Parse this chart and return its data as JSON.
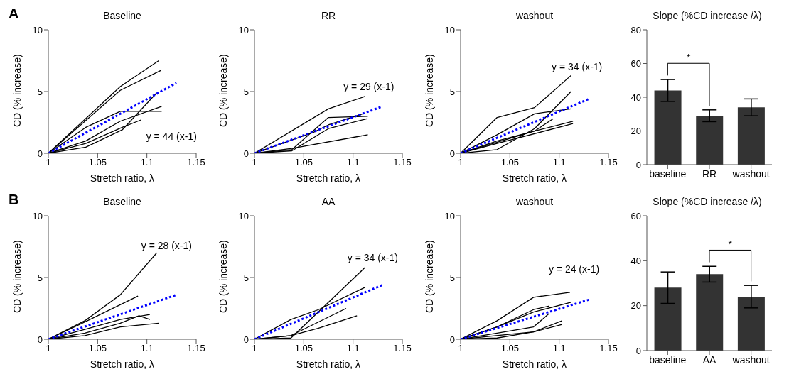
{
  "chart_data": [
    {
      "type": "line",
      "title": "Baseline",
      "xlabel": "Stretch ratio, λ",
      "ylabel": "CD (% increase)",
      "xlim": [
        1,
        1.15
      ],
      "xticks": [
        1,
        1.05,
        1.1,
        1.15
      ],
      "ylim": [
        0,
        10
      ],
      "yticks": [
        0,
        5,
        10
      ],
      "annotations": [
        "A",
        "y = 44 (x-1)"
      ],
      "series": [
        {
          "color": "#000000",
          "x": [
            1,
            1.073,
            1.112
          ],
          "values": [
            0,
            5.4,
            7.5
          ]
        },
        {
          "color": "#000000",
          "x": [
            1,
            1.073,
            1.114
          ],
          "values": [
            0,
            5.1,
            6.7
          ]
        },
        {
          "color": "#000000",
          "x": [
            1,
            1.038,
            1.073,
            1.115
          ],
          "values": [
            0,
            2.1,
            3.4,
            3.4
          ]
        },
        {
          "color": "#000000",
          "x": [
            1,
            1.038,
            1.075,
            1.11
          ],
          "values": [
            0,
            0.5,
            1.9,
            4.9
          ]
        },
        {
          "color": "#000000",
          "x": [
            1,
            1.038,
            1.073,
            1.115
          ],
          "values": [
            0,
            1,
            2.6,
            3.8
          ]
        },
        {
          "color": "#000000",
          "x": [
            1,
            1.038,
            1.075,
            1.094
          ],
          "values": [
            0,
            0.8,
            2.1,
            2.7
          ]
        },
        {
          "color": "#0000ff",
          "line_style": "dotted",
          "x": [
            1,
            1.13
          ],
          "values": [
            0,
            5.7
          ]
        }
      ]
    },
    {
      "type": "line",
      "title": "RR",
      "xlabel": "Stretch ratio, λ",
      "ylabel": "CD (% increase)",
      "xlim": [
        1,
        1.15
      ],
      "xticks": [
        1,
        1.05,
        1.1,
        1.15
      ],
      "ylim": [
        0,
        10
      ],
      "yticks": [
        0,
        5,
        10
      ],
      "annotations": [
        "y = 29 (x-1)"
      ],
      "series": [
        {
          "color": "#000000",
          "x": [
            1,
            1.075,
            1.112
          ],
          "values": [
            0,
            3.6,
            4.6
          ]
        },
        {
          "color": "#000000",
          "x": [
            1,
            1.038,
            1.075,
            1.115
          ],
          "values": [
            0,
            0.3,
            2.9,
            3
          ]
        },
        {
          "color": "#000000",
          "x": [
            1,
            1.038,
            1.075,
            1.114
          ],
          "values": [
            0,
            0.2,
            2,
            2.8
          ]
        },
        {
          "color": "#000000",
          "x": [
            1,
            1.038,
            1.115
          ],
          "values": [
            0,
            0.4,
            1.5
          ]
        },
        {
          "color": "#000000",
          "x": [
            1,
            1.06,
            1.075,
            1.11
          ],
          "values": [
            0,
            1.7,
            2.3,
            3.2
          ]
        },
        {
          "color": "#0000ff",
          "line_style": "dotted",
          "x": [
            1,
            1.13
          ],
          "values": [
            0,
            3.8
          ]
        }
      ]
    },
    {
      "type": "line",
      "title": "washout",
      "xlabel": "Stretch ratio, λ",
      "ylabel": "CD (% increase)",
      "xlim": [
        1,
        1.15
      ],
      "xticks": [
        1,
        1.05,
        1.1,
        1.15
      ],
      "ylim": [
        0,
        10
      ],
      "yticks": [
        0,
        5,
        10
      ],
      "annotations": [
        "y = 34 (x-1)"
      ],
      "series": [
        {
          "color": "#000000",
          "x": [
            1,
            1.037,
            1.075,
            1.112
          ],
          "values": [
            0,
            2.9,
            3.7,
            6.3
          ]
        },
        {
          "color": "#000000",
          "x": [
            1,
            1.037,
            1.075,
            1.112
          ],
          "values": [
            0,
            1.5,
            3.2,
            3.6
          ]
        },
        {
          "color": "#000000",
          "x": [
            1,
            1.037,
            1.075,
            1.112
          ],
          "values": [
            0,
            0.3,
            2,
            5
          ]
        },
        {
          "color": "#000000",
          "x": [
            1,
            1.037,
            1.075,
            1.094
          ],
          "values": [
            0,
            1,
            1.8,
            2.8
          ]
        },
        {
          "color": "#000000",
          "x": [
            1,
            1.075,
            1.114
          ],
          "values": [
            0,
            1.8,
            2.6
          ]
        },
        {
          "color": "#000000",
          "x": [
            1,
            1.037,
            1.114
          ],
          "values": [
            0,
            0.8,
            2.4
          ]
        },
        {
          "color": "#0000ff",
          "line_style": "dotted",
          "x": [
            1,
            1.13
          ],
          "values": [
            0,
            4.4
          ]
        }
      ]
    },
    {
      "type": "bar",
      "title": "Slope (%CD increase /λ)",
      "categories": [
        "baseline",
        "RR",
        "washout"
      ],
      "values": [
        44,
        29,
        34
      ],
      "errors": [
        6.5,
        3.5,
        5
      ],
      "color": "#333333",
      "ylim": [
        0,
        80
      ],
      "yticks": [
        0,
        20,
        40,
        60,
        80
      ],
      "annotations": [
        "*"
      ]
    },
    {
      "type": "line",
      "title": "Baseline",
      "xlabel": "Stretch ratio, λ",
      "ylabel": "CD (% increase)",
      "xlim": [
        1,
        1.15
      ],
      "xticks": [
        1,
        1.05,
        1.1,
        1.15
      ],
      "ylim": [
        0,
        10
      ],
      "yticks": [
        0,
        5,
        10
      ],
      "annotations": [
        "B",
        "y = 28 (x-1)"
      ],
      "series": [
        {
          "color": "#000000",
          "x": [
            1,
            1.037,
            1.073,
            1.11
          ],
          "values": [
            0,
            1.5,
            3.6,
            7
          ]
        },
        {
          "color": "#000000",
          "x": [
            1,
            1.037,
            1.091
          ],
          "values": [
            0,
            1.4,
            3.5
          ]
        },
        {
          "color": "#000000",
          "x": [
            1,
            1.037,
            1.073,
            1.103
          ],
          "values": [
            0,
            0.8,
            1.6,
            2
          ]
        },
        {
          "color": "#000000",
          "x": [
            1,
            1.037,
            1.073,
            1.092,
            1.103
          ],
          "values": [
            0,
            0.5,
            1.3,
            1.9,
            1.6
          ]
        },
        {
          "color": "#000000",
          "x": [
            1,
            1.037,
            1.073,
            1.112
          ],
          "values": [
            0,
            0.3,
            1,
            1.3
          ]
        },
        {
          "color": "#0000ff",
          "line_style": "dotted",
          "x": [
            1,
            1.13
          ],
          "values": [
            0,
            3.6
          ]
        }
      ]
    },
    {
      "type": "line",
      "title": "AA",
      "xlabel": "Stretch ratio, λ",
      "ylabel": "CD (% increase)",
      "xlim": [
        1,
        1.15
      ],
      "xticks": [
        1,
        1.05,
        1.1,
        1.15
      ],
      "ylim": [
        0,
        10
      ],
      "yticks": [
        0,
        5,
        10
      ],
      "annotations": [
        "y = 34 (x-1)"
      ],
      "series": [
        {
          "color": "#000000",
          "x": [
            1,
            1.037,
            1.112
          ],
          "values": [
            0,
            0.1,
            5.8
          ]
        },
        {
          "color": "#000000",
          "x": [
            1,
            1.037,
            1.065,
            1.112
          ],
          "values": [
            0,
            1.6,
            2.4,
            4.2
          ]
        },
        {
          "color": "#000000",
          "x": [
            1,
            1.037,
            1.093
          ],
          "values": [
            0,
            0.3,
            2.5
          ]
        },
        {
          "color": "#000000",
          "x": [
            1,
            1.037,
            1.065,
            1.104
          ],
          "values": [
            0,
            0.3,
            0.9,
            1.9
          ]
        },
        {
          "color": "#0000ff",
          "line_style": "dotted",
          "x": [
            1,
            1.13
          ],
          "values": [
            0,
            4.4
          ]
        }
      ]
    },
    {
      "type": "line",
      "title": "washout",
      "xlabel": "Stretch ratio, λ",
      "ylabel": "CD (% increase)",
      "xlim": [
        1,
        1.15
      ],
      "xticks": [
        1,
        1.05,
        1.1,
        1.15
      ],
      "ylim": [
        0,
        10
      ],
      "yticks": [
        0,
        5,
        10
      ],
      "annotations": [
        "y = 24 (x-1)"
      ],
      "series": [
        {
          "color": "#000000",
          "x": [
            1,
            1.037,
            1.074,
            1.111
          ],
          "values": [
            0,
            1.5,
            3.4,
            3.8
          ]
        },
        {
          "color": "#000000",
          "x": [
            1,
            1.037,
            1.074,
            1.09
          ],
          "values": [
            0,
            1,
            2.4,
            2.7
          ]
        },
        {
          "color": "#000000",
          "x": [
            1,
            1.037,
            1.074,
            1.112
          ],
          "values": [
            0,
            1,
            2.2,
            3
          ]
        },
        {
          "color": "#000000",
          "x": [
            1,
            1.037,
            1.074,
            1.09
          ],
          "values": [
            0,
            0.5,
            1,
            2.1
          ]
        },
        {
          "color": "#000000",
          "x": [
            1,
            1.037,
            1.074,
            1.103
          ],
          "values": [
            0,
            0.1,
            0.6,
            1.5
          ]
        },
        {
          "color": "#000000",
          "x": [
            1,
            1.074,
            1.103
          ],
          "values": [
            0,
            0.6,
            1.2
          ]
        },
        {
          "color": "#0000ff",
          "line_style": "dotted",
          "x": [
            1,
            1.13
          ],
          "values": [
            0,
            3.2
          ]
        }
      ]
    },
    {
      "type": "bar",
      "title": "Slope (%CD increase /λ)",
      "categories": [
        "baseline",
        "AA",
        "washout"
      ],
      "values": [
        28,
        34,
        24
      ],
      "errors": [
        7,
        3.5,
        5
      ],
      "color": "#333333",
      "ylim": [
        0,
        60
      ],
      "yticks": [
        0,
        20,
        40,
        60
      ],
      "annotations": [
        "*"
      ]
    }
  ]
}
